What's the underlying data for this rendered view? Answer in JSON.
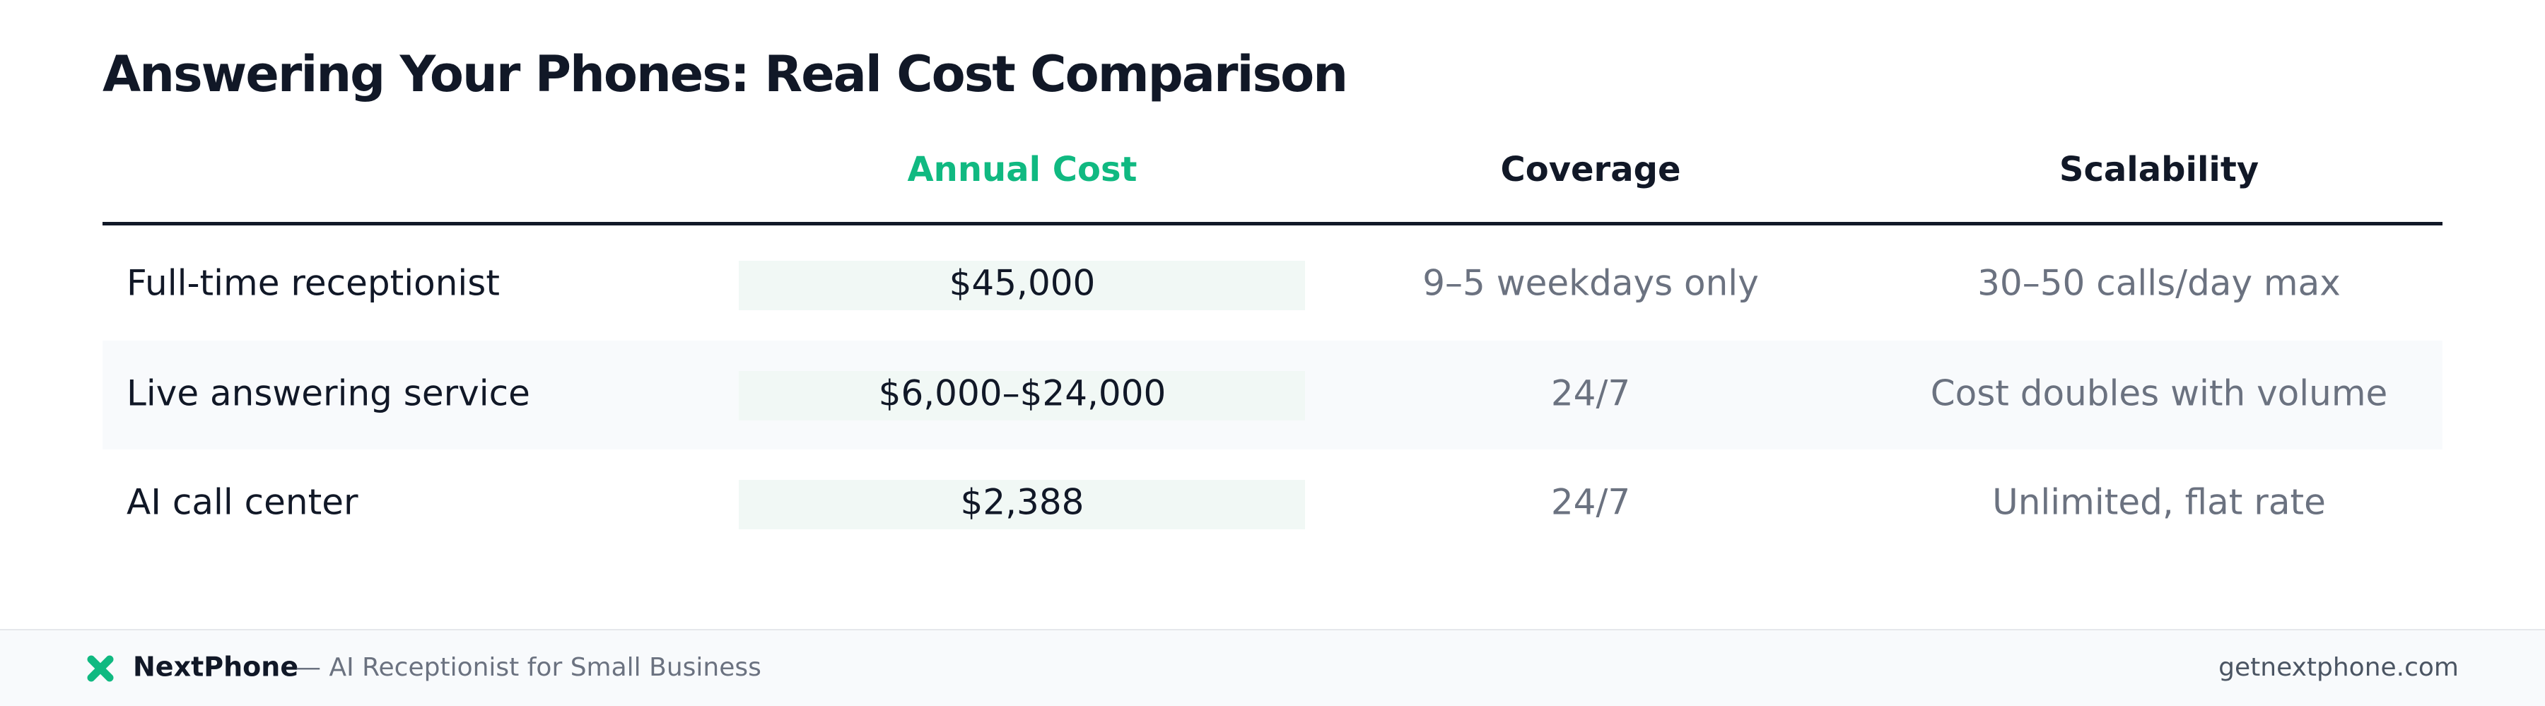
{
  "title": "Answering Your Phones: Real Cost Comparison",
  "table": {
    "columns": [
      "Annual Cost",
      "Coverage",
      "Scalability"
    ],
    "rows": [
      {
        "label": "Full-time receptionist",
        "cells": [
          "$45,000",
          "9–5 weekdays only",
          "30–50 calls/day max"
        ]
      },
      {
        "label": "Live answering service",
        "cells": [
          "$6,000–$24,000",
          "24/7",
          "Cost doubles with volume"
        ]
      },
      {
        "label": "AI call center",
        "cells": [
          "$2,388",
          "24/7",
          "Unlimited, flat rate"
        ]
      }
    ]
  },
  "footer": {
    "brand": "NextPhone",
    "tagline": "— AI Receptionist for Small Business",
    "url": "getnextphone.com"
  }
}
